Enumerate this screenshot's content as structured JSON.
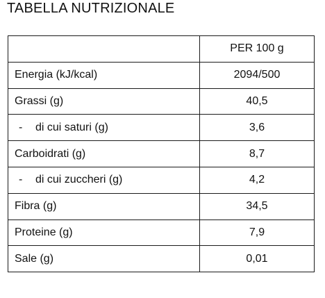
{
  "title": "TABELLA NUTRIZIONALE",
  "table": {
    "header": {
      "label": "",
      "value": "PER 100 g"
    },
    "rows": [
      {
        "label": "Energia (kJ/kcal)",
        "value": "2094/500"
      },
      {
        "label": "Grassi (g)",
        "value": "40,5"
      },
      {
        "dash": "-",
        "label": "di cui saturi (g)",
        "value": "3,6"
      },
      {
        "label": "Carboidrati (g)",
        "value": "8,7"
      },
      {
        "dash": "-",
        "label": "di cui zuccheri (g)",
        "value": "4,2"
      },
      {
        "label": "Fibra (g)",
        "value": "34,5"
      },
      {
        "label": "Proteine (g)",
        "value": "7,9"
      },
      {
        "label": "Sale (g)",
        "value": "0,01"
      }
    ]
  }
}
